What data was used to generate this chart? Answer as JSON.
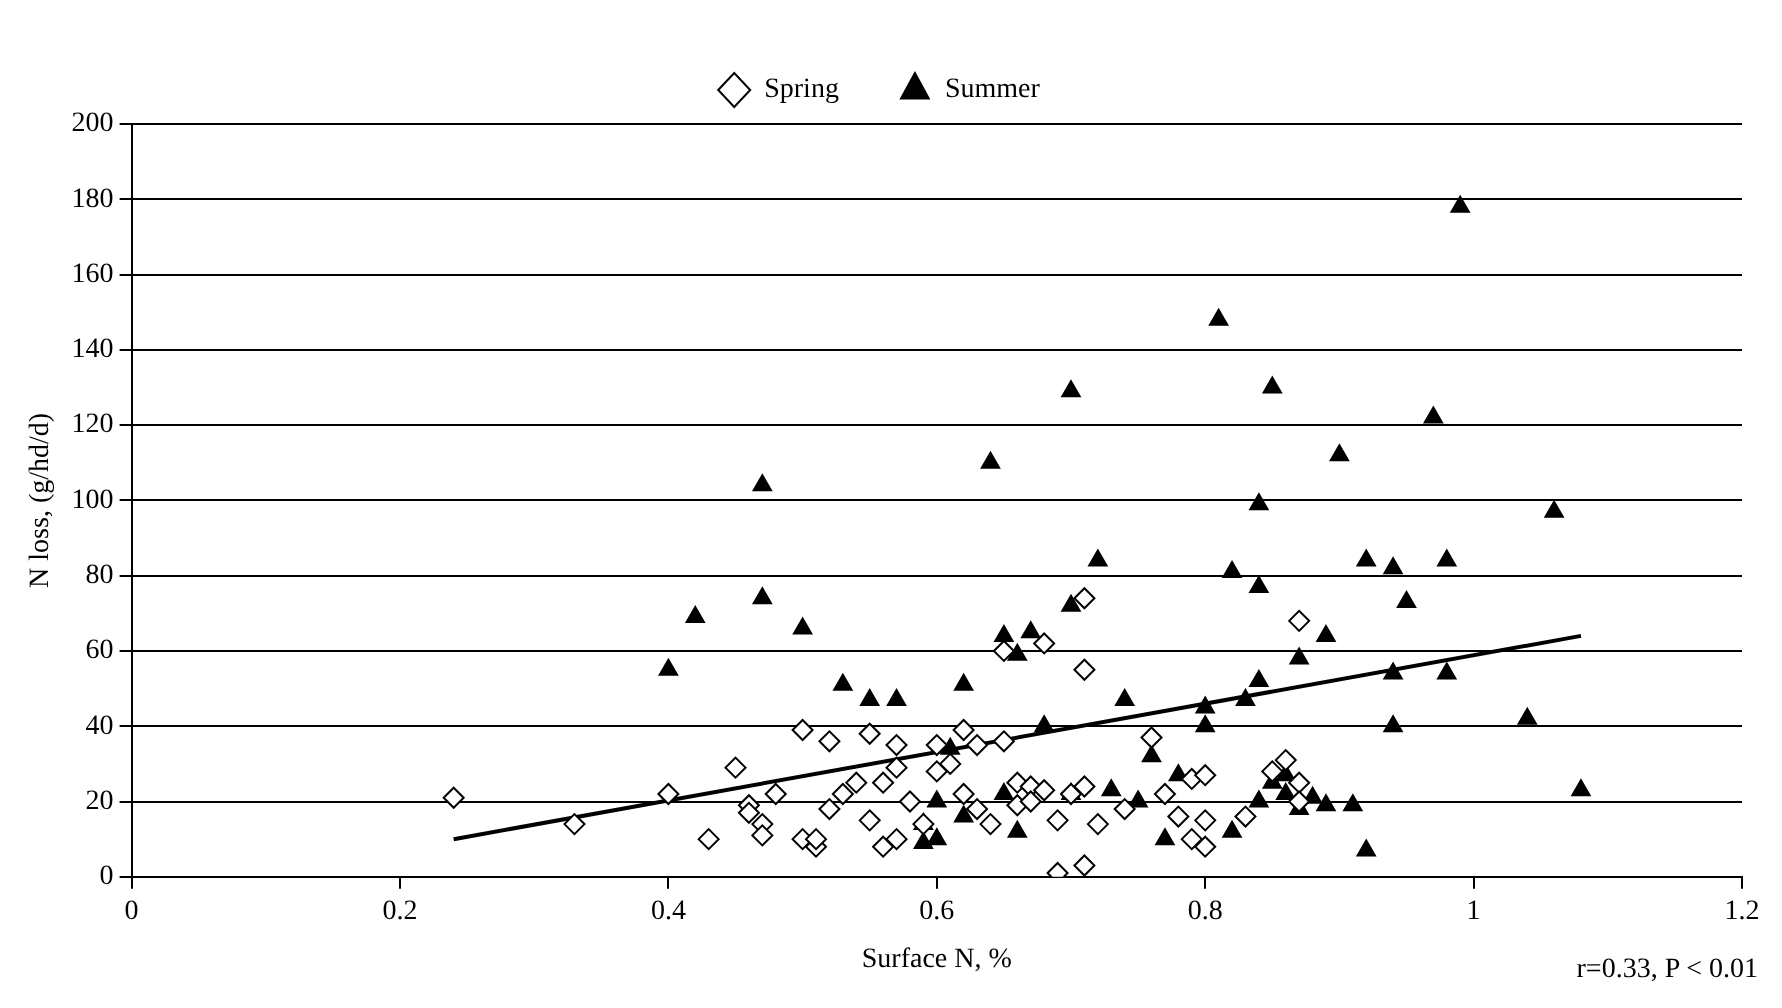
{
  "chart_data": {
    "type": "scatter",
    "xlabel": "Surface N, %",
    "ylabel": "N loss, (g/hd/d)",
    "xlim": [
      0,
      1.2
    ],
    "xticks": [
      0,
      0.2,
      0.4,
      0.6,
      0.8,
      1,
      1.2
    ],
    "ylim": [
      0,
      200
    ],
    "yticks": [
      0,
      20,
      40,
      60,
      80,
      100,
      120,
      140,
      160,
      180,
      200
    ],
    "grid": "y",
    "legend": "top",
    "annotations": [
      "r=0.33, P < 0.01"
    ],
    "series": [
      {
        "name": "Spring",
        "color": "#ffffff",
        "marker": "diamond",
        "x": [
          0.24,
          0.33,
          0.4,
          0.43,
          0.45,
          0.46,
          0.46,
          0.47,
          0.47,
          0.48,
          0.5,
          0.5,
          0.51,
          0.51,
          0.52,
          0.52,
          0.53,
          0.54,
          0.55,
          0.55,
          0.56,
          0.56,
          0.57,
          0.57,
          0.57,
          0.58,
          0.59,
          0.6,
          0.6,
          0.61,
          0.62,
          0.62,
          0.63,
          0.63,
          0.64,
          0.65,
          0.65,
          0.66,
          0.66,
          0.67,
          0.67,
          0.68,
          0.68,
          0.69,
          0.69,
          0.7,
          0.71,
          0.71,
          0.71,
          0.72,
          0.71,
          0.74,
          0.76,
          0.77,
          0.78,
          0.79,
          0.79,
          0.8,
          0.8,
          0.8,
          0.83,
          0.85,
          0.86,
          0.87,
          0.87,
          0.87
        ],
        "values": [
          21,
          14,
          22,
          10,
          29,
          19,
          17,
          14,
          11,
          22,
          39,
          10,
          8,
          10,
          36,
          18,
          22,
          25,
          38,
          15,
          25,
          8,
          29,
          35,
          10,
          20,
          14,
          28,
          35,
          30,
          39,
          22,
          18,
          35,
          14,
          60,
          36,
          19,
          25,
          24,
          20,
          62,
          23,
          15,
          1,
          22,
          74,
          55,
          24,
          14,
          3,
          18,
          37,
          22,
          16,
          10,
          26,
          27,
          15,
          8,
          16,
          28,
          31,
          25,
          68,
          20
        ]
      },
      {
        "name": "Summer",
        "color": "#000000",
        "marker": "triangle",
        "x": [
          0.4,
          0.42,
          0.47,
          0.47,
          0.5,
          0.53,
          0.55,
          0.57,
          0.59,
          0.59,
          0.6,
          0.6,
          0.61,
          0.62,
          0.62,
          0.64,
          0.65,
          0.65,
          0.66,
          0.66,
          0.67,
          0.68,
          0.7,
          0.7,
          0.7,
          0.72,
          0.73,
          0.74,
          0.75,
          0.76,
          0.77,
          0.78,
          0.8,
          0.8,
          0.81,
          0.82,
          0.82,
          0.83,
          0.84,
          0.84,
          0.84,
          0.84,
          0.85,
          0.85,
          0.86,
          0.86,
          0.87,
          0.87,
          0.88,
          0.89,
          0.89,
          0.9,
          0.91,
          0.92,
          0.92,
          0.94,
          0.94,
          0.94,
          0.95,
          0.97,
          0.98,
          0.98,
          0.99,
          1.04,
          1.06,
          1.08
        ],
        "values": [
          55,
          69,
          104,
          74,
          66,
          51,
          47,
          47,
          9,
          14,
          10,
          20,
          34,
          16,
          51,
          110,
          64,
          22,
          59,
          12,
          65,
          40,
          129,
          72,
          22,
          84,
          23,
          47,
          20,
          32,
          10,
          27,
          45,
          40,
          148,
          12,
          81,
          47,
          20,
          77,
          99,
          52,
          130,
          25,
          27,
          22,
          58,
          18,
          21,
          64,
          19,
          112,
          19,
          7,
          84,
          82,
          54,
          40,
          73,
          122,
          84,
          54,
          178,
          42,
          97,
          23
        ]
      },
      {
        "type": "line",
        "color": "#000000",
        "marker": "none",
        "x": [
          0.24,
          1.08
        ],
        "values": [
          10,
          64
        ]
      }
    ]
  }
}
